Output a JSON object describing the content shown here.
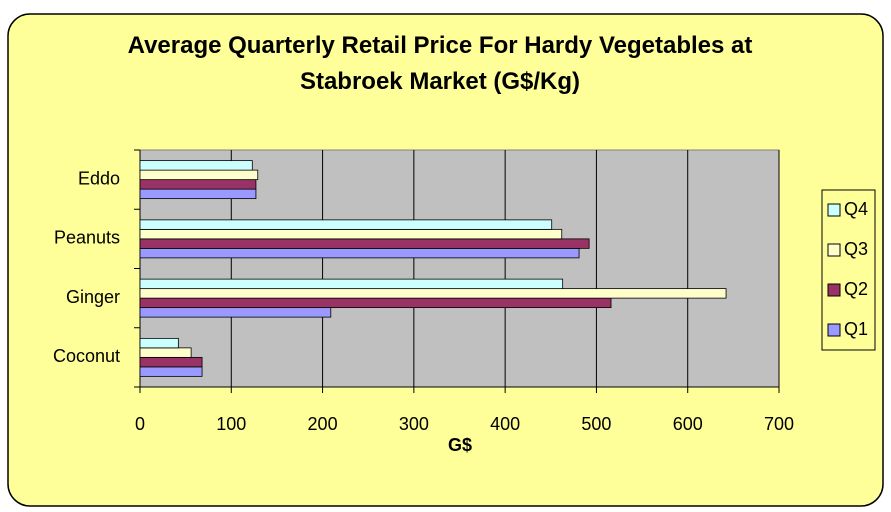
{
  "chart_data": {
    "type": "bar",
    "orientation": "horizontal",
    "title": "Average Quarterly Retail Price For Hardy Vegetables at Stabroek Market (G$/Kg)",
    "x_label": "G$",
    "categories": [
      "Coconut",
      "Ginger",
      "Peanuts",
      "Eddo"
    ],
    "series": [
      {
        "name": "Q1",
        "color": "#9999ff",
        "values": [
          68,
          209,
          481,
          127
        ]
      },
      {
        "name": "Q2",
        "color": "#993366",
        "values": [
          68,
          516,
          492,
          127
        ]
      },
      {
        "name": "Q3",
        "color": "#ffffcc",
        "values": [
          56,
          642,
          462,
          129
        ]
      },
      {
        "name": "Q4",
        "color": "#ccffff",
        "values": [
          42,
          463,
          451,
          123
        ]
      }
    ],
    "xlim": [
      0,
      700
    ],
    "xticks": [
      0,
      100,
      200,
      300,
      400,
      500,
      600,
      700
    ],
    "grid": true,
    "legend": "right"
  }
}
